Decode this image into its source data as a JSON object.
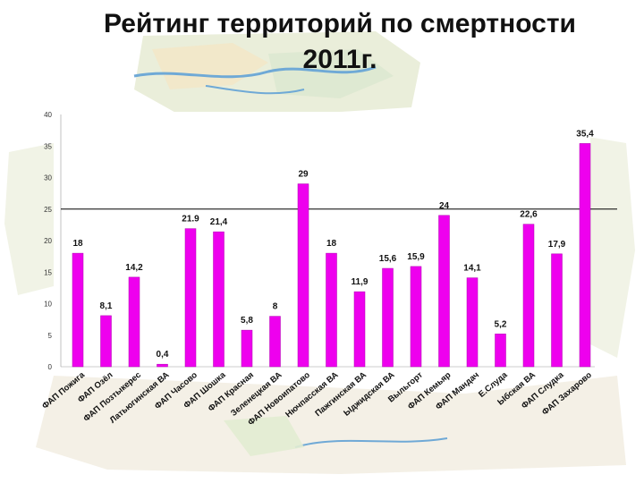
{
  "title_line1": "Рейтинг территорий по смертности",
  "title_line2": "2011г.",
  "colors": {
    "bar": "#ee00ee",
    "bar_stroke": "#b000b0",
    "reference_line": "#000000"
  },
  "chart_data": {
    "type": "bar",
    "title": "Рейтинг территорий по смертности 2011г.",
    "xlabel": "",
    "ylabel": "",
    "ylim": [
      0,
      40
    ],
    "yticks": [
      "0",
      "5",
      "10",
      "15",
      "20",
      "25",
      "30",
      "35",
      "40"
    ],
    "grid": false,
    "reference_line": 25,
    "categories": [
      "ФАП Пожига",
      "ФАП Озёл",
      "ФАП Позтыкерес",
      "Латьюгинская ВА",
      "ФАП Часово",
      "ФАП Шошка",
      "ФАП Красная",
      "Зеленецкая ВА",
      "ФАП Новоипатово",
      "Нючпасская ВА",
      "Пажгинская ВА",
      "Ыджидская ВА",
      "Выльгорт",
      "ФАП Кемьяр",
      "ФАП Мандач",
      "Е.Слуда",
      "Ыбская ВА",
      "ФАП Слудка",
      "ФАП Захарово"
    ],
    "values": [
      18,
      8.1,
      14.2,
      0.4,
      21.9,
      21.4,
      5.8,
      8,
      29,
      18,
      11.9,
      15.6,
      15.9,
      24,
      14.1,
      5.2,
      22.6,
      17.9,
      35.4
    ],
    "value_labels": [
      "18",
      "8,1",
      "14,2",
      "0,4",
      "21.9",
      "21,4",
      "5,8",
      "8",
      "29",
      "18",
      "11,9",
      "15,6",
      "15,9",
      "24",
      "14,1",
      "5,2",
      "22,6",
      "17,9",
      "35,4"
    ]
  }
}
